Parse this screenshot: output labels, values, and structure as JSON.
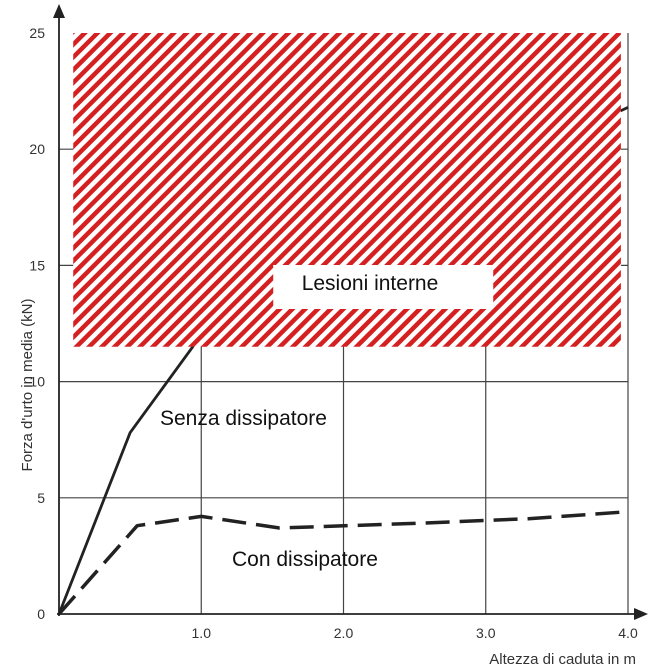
{
  "chart_data": {
    "type": "line",
    "xlabel": "Altezza di caduta in m",
    "ylabel": "Forza d'urto in media (kN)",
    "xlim": [
      0,
      4.0
    ],
    "ylim": [
      0,
      25
    ],
    "x_ticks": [
      "1.0",
      "2.0",
      "3.0",
      "4.0"
    ],
    "y_ticks": [
      "0",
      "5",
      "10",
      "15",
      "20",
      "25"
    ],
    "grid": true,
    "series": [
      {
        "style": "solid",
        "points": [
          [
            0,
            0
          ],
          [
            0.5,
            7.8
          ],
          [
            1.0,
            12.0
          ],
          [
            1.7,
            15.0
          ],
          [
            2.5,
            17.5
          ],
          [
            3.3,
            19.8
          ],
          [
            4.0,
            21.8
          ]
        ]
      },
      {
        "style": "dashed",
        "points": [
          [
            0,
            0
          ],
          [
            0.55,
            3.8
          ],
          [
            1.0,
            4.2
          ],
          [
            1.55,
            3.7
          ],
          [
            2.5,
            3.9
          ],
          [
            3.3,
            4.1
          ],
          [
            4.0,
            4.4
          ]
        ]
      }
    ],
    "region": {
      "label": "Lesioni interne",
      "x_range": [
        0.1,
        3.95
      ],
      "y_range": [
        11.5,
        25
      ],
      "fill": "#d42020"
    },
    "annotations": {
      "senza": "Senza dissipatore",
      "con": "Con dissipatore"
    }
  }
}
